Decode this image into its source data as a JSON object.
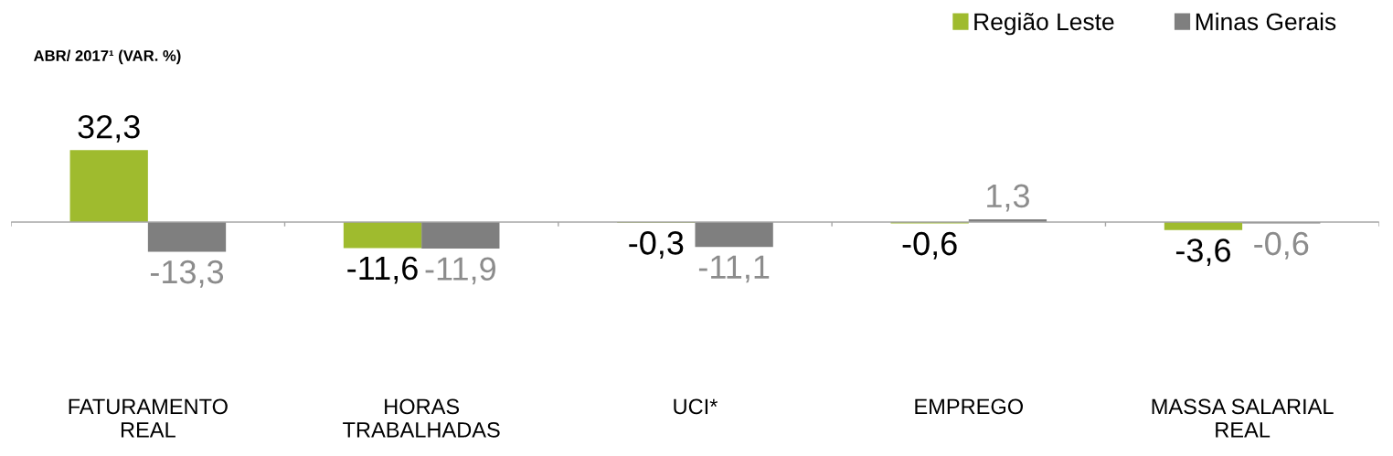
{
  "chart_data": {
    "type": "bar",
    "title": "ABR/ 2017¹ (VAR. %)",
    "categories": [
      "FATURAMENTO\nREAL",
      "HORAS\nTRABALHADAS",
      "UCI*",
      "EMPREGO",
      "MASSA SALARIAL\nREAL"
    ],
    "series": [
      {
        "name": "Região Leste",
        "color": "#9fbb2e",
        "values": [
          32.3,
          -11.6,
          -0.3,
          -0.6,
          -3.6
        ],
        "value_labels": [
          "32,3",
          "-11,6",
          "-0,3",
          "-0,6",
          "-3,6"
        ]
      },
      {
        "name": "Minas Gerais",
        "color": "#7f7f7f",
        "values": [
          -13.3,
          -11.9,
          -11.1,
          1.3,
          -0.6
        ],
        "value_labels": [
          "-13,3",
          "-11,9",
          "-11,1",
          "1,3",
          "-0,6"
        ]
      }
    ],
    "legend": "top right"
  }
}
